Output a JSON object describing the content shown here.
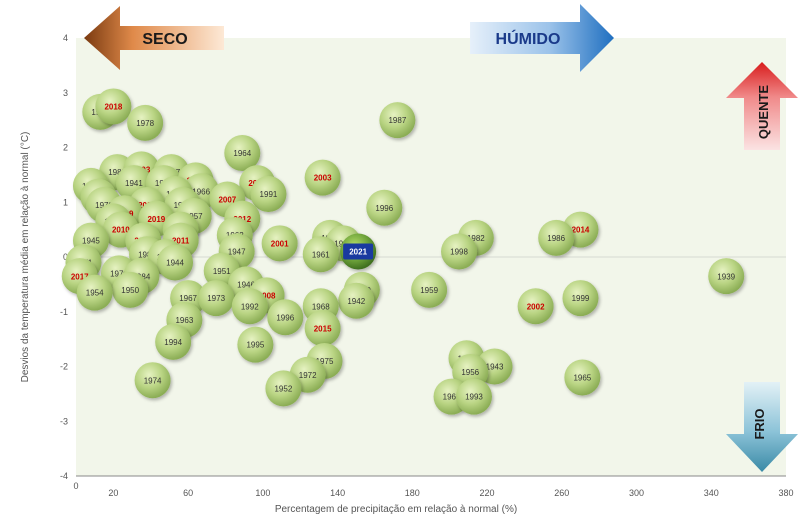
{
  "chart_data": {
    "type": "scatter",
    "xlabel": "Percentagem de precipitação em relação à normal (%)",
    "ylabel": "Desvios da temperatura média em relação à normal  (°C)",
    "xlim": [
      0,
      380
    ],
    "ylim": [
      -4,
      4
    ],
    "x_ticks": [
      "0",
      "20",
      "60",
      "100",
      "140",
      "180",
      "220",
      "260",
      "300",
      "340",
      "380"
    ],
    "y_ticks": [
      "4",
      "3",
      "2",
      "1",
      "0",
      "-1",
      "-2",
      "-3",
      "-4"
    ],
    "grid": false,
    "background": "#f2f6ea",
    "highlight_color": "#cc0000",
    "normal_color": "#333333",
    "current_year_color": "#1a3aa0",
    "annotations": {
      "seco": "SECO",
      "humido": "HÚMIDO",
      "quente": "QUENTE",
      "frio": "FRIO"
    },
    "points": [
      {
        "label": "1985",
        "x": 13,
        "y": 2.65,
        "style": "normal"
      },
      {
        "label": "2018",
        "x": 20,
        "y": 2.75,
        "style": "highlight"
      },
      {
        "label": "1978",
        "x": 37,
        "y": 2.45,
        "style": "normal"
      },
      {
        "label": "1987",
        "x": 172,
        "y": 2.5,
        "style": "normal"
      },
      {
        "label": "1964",
        "x": 89,
        "y": 1.9,
        "style": "normal"
      },
      {
        "label": "1983",
        "x": 22,
        "y": 1.55,
        "style": "normal"
      },
      {
        "label": "2003",
        "x": 35,
        "y": 1.6,
        "style": "highlight"
      },
      {
        "label": "1997",
        "x": 51,
        "y": 1.55,
        "style": "normal"
      },
      {
        "label": "2003",
        "x": 132,
        "y": 1.45,
        "style": "highlight"
      },
      {
        "label": "1948",
        "x": 8,
        "y": 1.3,
        "style": "normal"
      },
      {
        "label": "1941",
        "x": 31,
        "y": 1.35,
        "style": "normal"
      },
      {
        "label": "1980",
        "x": 47,
        "y": 1.35,
        "style": "normal"
      },
      {
        "label": "2016",
        "x": 64,
        "y": 1.4,
        "style": "highlight"
      },
      {
        "label": "2020",
        "x": 97,
        "y": 1.35,
        "style": "highlight"
      },
      {
        "label": "1966",
        "x": 67,
        "y": 1.2,
        "style": "normal"
      },
      {
        "label": "1988",
        "x": 12,
        "y": 1.1,
        "style": "normal"
      },
      {
        "label": "1990",
        "x": 53,
        "y": 1.15,
        "style": "normal"
      },
      {
        "label": "2007",
        "x": 81,
        "y": 1.05,
        "style": "highlight"
      },
      {
        "label": "1991",
        "x": 103,
        "y": 1.15,
        "style": "normal"
      },
      {
        "label": "1970",
        "x": 15,
        "y": 0.95,
        "style": "normal"
      },
      {
        "label": "2004",
        "x": 38,
        "y": 0.95,
        "style": "highlight"
      },
      {
        "label": "1977",
        "x": 57,
        "y": 0.95,
        "style": "normal"
      },
      {
        "label": "2009",
        "x": 26,
        "y": 0.8,
        "style": "highlight"
      },
      {
        "label": "1996",
        "x": 165,
        "y": 0.9,
        "style": "normal"
      },
      {
        "label": "1955",
        "x": 20,
        "y": 0.65,
        "style": "normal"
      },
      {
        "label": "2019",
        "x": 43,
        "y": 0.7,
        "style": "highlight"
      },
      {
        "label": "1957",
        "x": 63,
        "y": 0.75,
        "style": "normal"
      },
      {
        "label": "2012",
        "x": 89,
        "y": 0.7,
        "style": "highlight"
      },
      {
        "label": "2010",
        "x": 24,
        "y": 0.5,
        "style": "highlight"
      },
      {
        "label": "2000",
        "x": 56,
        "y": 0.5,
        "style": "highlight"
      },
      {
        "label": "1962",
        "x": 85,
        "y": 0.4,
        "style": "normal"
      },
      {
        "label": "1953",
        "x": 136,
        "y": 0.35,
        "style": "normal"
      },
      {
        "label": "1982",
        "x": 214,
        "y": 0.35,
        "style": "normal"
      },
      {
        "label": "2014",
        "x": 270,
        "y": 0.5,
        "style": "highlight"
      },
      {
        "label": "1945",
        "x": 8,
        "y": 0.3,
        "style": "normal"
      },
      {
        "label": "2005",
        "x": 36,
        "y": 0.3,
        "style": "highlight"
      },
      {
        "label": "2011",
        "x": 56,
        "y": 0.3,
        "style": "highlight"
      },
      {
        "label": "2001",
        "x": 109,
        "y": 0.25,
        "style": "highlight"
      },
      {
        "label": "1981",
        "x": 143,
        "y": 0.25,
        "style": "normal"
      },
      {
        "label": "1986",
        "x": 257,
        "y": 0.35,
        "style": "normal"
      },
      {
        "label": "1989",
        "x": 38,
        "y": 0.05,
        "style": "normal"
      },
      {
        "label": "1958",
        "x": 48,
        "y": 0.0,
        "style": "normal"
      },
      {
        "label": "1947",
        "x": 86,
        "y": 0.1,
        "style": "normal"
      },
      {
        "label": "1961",
        "x": 131,
        "y": 0.05,
        "style": "normal"
      },
      {
        "label": "2021",
        "x": 151,
        "y": 0.1,
        "style": "current"
      },
      {
        "label": "1998",
        "x": 205,
        "y": 0.1,
        "style": "normal"
      },
      {
        "label": "1944",
        "x": 53,
        "y": -0.1,
        "style": "normal"
      },
      {
        "label": "1971",
        "x": 4,
        "y": -0.1,
        "style": "normal"
      },
      {
        "label": "1951",
        "x": 78,
        "y": -0.25,
        "style": "normal"
      },
      {
        "label": "1979",
        "x": 23,
        "y": -0.3,
        "style": "normal"
      },
      {
        "label": "1984",
        "x": 35,
        "y": -0.35,
        "style": "normal"
      },
      {
        "label": "1939",
        "x": 348,
        "y": -0.35,
        "style": "normal"
      },
      {
        "label": "2017",
        "x": 2,
        "y": -0.35,
        "style": "highlight"
      },
      {
        "label": "1950",
        "x": 29,
        "y": -0.6,
        "style": "normal"
      },
      {
        "label": "1946",
        "x": 91,
        "y": -0.5,
        "style": "normal"
      },
      {
        "label": "1954",
        "x": 10,
        "y": -0.65,
        "style": "normal"
      },
      {
        "label": "1960",
        "x": 153,
        "y": -0.6,
        "style": "normal"
      },
      {
        "label": "1959",
        "x": 189,
        "y": -0.6,
        "style": "normal"
      },
      {
        "label": "1967",
        "x": 60,
        "y": -0.75,
        "style": "normal"
      },
      {
        "label": "1973",
        "x": 75,
        "y": -0.75,
        "style": "normal"
      },
      {
        "label": "2008",
        "x": 102,
        "y": -0.7,
        "style": "highlight"
      },
      {
        "label": "1942",
        "x": 150,
        "y": -0.8,
        "style": "normal"
      },
      {
        "label": "1999",
        "x": 270,
        "y": -0.75,
        "style": "normal"
      },
      {
        "label": "1992",
        "x": 93,
        "y": -0.9,
        "style": "normal"
      },
      {
        "label": "1968",
        "x": 131,
        "y": -0.9,
        "style": "normal"
      },
      {
        "label": "2002",
        "x": 246,
        "y": -0.9,
        "style": "highlight"
      },
      {
        "label": "1963",
        "x": 58,
        "y": -1.15,
        "style": "normal"
      },
      {
        "label": "1996",
        "x": 112,
        "y": -1.1,
        "style": "normal"
      },
      {
        "label": "2015",
        "x": 132,
        "y": -1.3,
        "style": "highlight"
      },
      {
        "label": "1994",
        "x": 52,
        "y": -1.55,
        "style": "normal"
      },
      {
        "label": "1995",
        "x": 96,
        "y": -1.6,
        "style": "normal"
      },
      {
        "label": "1976",
        "x": 209,
        "y": -1.85,
        "style": "normal"
      },
      {
        "label": "1975",
        "x": 133,
        "y": -1.9,
        "style": "normal"
      },
      {
        "label": "1943",
        "x": 224,
        "y": -2.0,
        "style": "normal"
      },
      {
        "label": "1972",
        "x": 124,
        "y": -2.15,
        "style": "normal"
      },
      {
        "label": "1956",
        "x": 211,
        "y": -2.1,
        "style": "normal"
      },
      {
        "label": "1965",
        "x": 271,
        "y": -2.2,
        "style": "normal"
      },
      {
        "label": "1974",
        "x": 41,
        "y": -2.25,
        "style": "normal"
      },
      {
        "label": "1952",
        "x": 111,
        "y": -2.4,
        "style": "normal"
      },
      {
        "label": "1969",
        "x": 201,
        "y": -2.55,
        "style": "normal"
      },
      {
        "label": "1993",
        "x": 213,
        "y": -2.55,
        "style": "normal"
      }
    ]
  }
}
